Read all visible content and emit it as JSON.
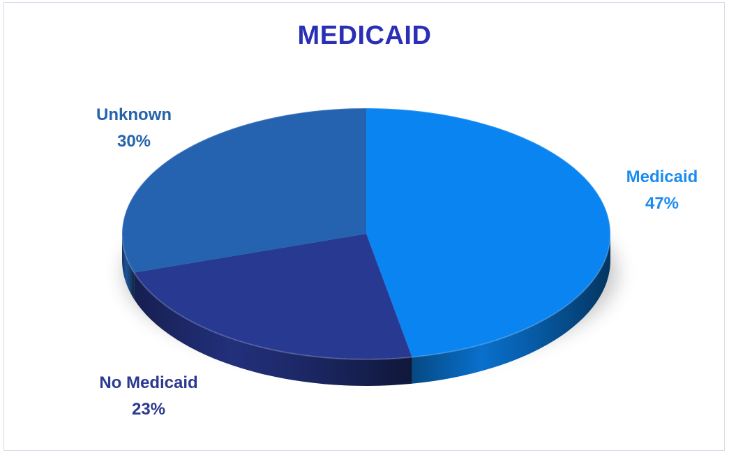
{
  "chart_data": {
    "type": "pie",
    "title": "MEDICAID",
    "style": "3d",
    "categories": [
      "Medicaid",
      "No Medicaid",
      "Unknown"
    ],
    "values": [
      47,
      23,
      30
    ],
    "value_labels": [
      "47%",
      "23%",
      "30%"
    ],
    "colors": [
      "#0a84f0",
      "#283991",
      "#2563b0"
    ],
    "label_colors": [
      "#1a8cf0",
      "#2b3990",
      "#2563ab"
    ],
    "title_color": "#2b2fb5",
    "legend": "none"
  }
}
